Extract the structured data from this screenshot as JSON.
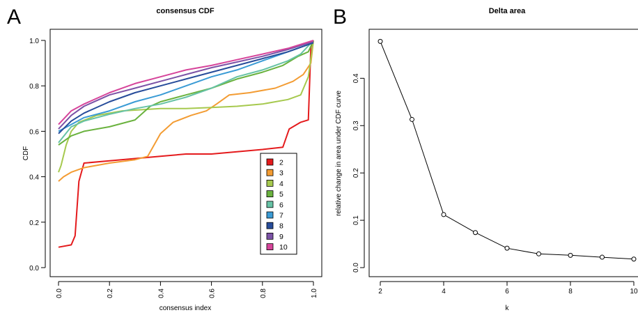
{
  "panels": {
    "a_letter": "A",
    "b_letter": "B"
  },
  "chart_data": [
    {
      "type": "line",
      "title": "consensus CDF",
      "xlabel": "consensus index",
      "ylabel": "CDF",
      "xlim": [
        0,
        1
      ],
      "ylim": [
        0,
        1
      ],
      "xticks": [
        "0.0",
        "0.2",
        "0.4",
        "0.6",
        "0.8",
        "1.0"
      ],
      "yticks": [
        "0.0",
        "0.2",
        "0.4",
        "0.6",
        "0.8",
        "1.0"
      ],
      "legend_position": "bottom-right",
      "series": [
        {
          "name": "2",
          "color": "#e41a1c",
          "points": [
            [
              0,
              0.09
            ],
            [
              0.05,
              0.1
            ],
            [
              0.065,
              0.14
            ],
            [
              0.08,
              0.38
            ],
            [
              0.1,
              0.46
            ],
            [
              0.2,
              0.47
            ],
            [
              0.3,
              0.48
            ],
            [
              0.4,
              0.49
            ],
            [
              0.5,
              0.5
            ],
            [
              0.6,
              0.5
            ],
            [
              0.7,
              0.51
            ],
            [
              0.8,
              0.52
            ],
            [
              0.88,
              0.53
            ],
            [
              0.905,
              0.61
            ],
            [
              0.95,
              0.64
            ],
            [
              0.98,
              0.65
            ],
            [
              0.99,
              0.97
            ],
            [
              1.0,
              1.0
            ]
          ]
        },
        {
          "name": "3",
          "color": "#f39c33",
          "points": [
            [
              0,
              0.38
            ],
            [
              0.02,
              0.4
            ],
            [
              0.05,
              0.42
            ],
            [
              0.1,
              0.44
            ],
            [
              0.2,
              0.46
            ],
            [
              0.3,
              0.475
            ],
            [
              0.35,
              0.49
            ],
            [
              0.4,
              0.59
            ],
            [
              0.45,
              0.64
            ],
            [
              0.52,
              0.67
            ],
            [
              0.58,
              0.69
            ],
            [
              0.62,
              0.72
            ],
            [
              0.67,
              0.76
            ],
            [
              0.75,
              0.77
            ],
            [
              0.85,
              0.79
            ],
            [
              0.92,
              0.82
            ],
            [
              0.96,
              0.85
            ],
            [
              0.99,
              0.9
            ],
            [
              1.0,
              1.0
            ]
          ]
        },
        {
          "name": "4",
          "color": "#a6c94e",
          "points": [
            [
              0,
              0.42
            ],
            [
              0.01,
              0.45
            ],
            [
              0.03,
              0.54
            ],
            [
              0.05,
              0.6
            ],
            [
              0.08,
              0.64
            ],
            [
              0.15,
              0.67
            ],
            [
              0.25,
              0.69
            ],
            [
              0.4,
              0.7
            ],
            [
              0.5,
              0.7
            ],
            [
              0.6,
              0.705
            ],
            [
              0.7,
              0.71
            ],
            [
              0.8,
              0.72
            ],
            [
              0.9,
              0.74
            ],
            [
              0.95,
              0.76
            ],
            [
              0.98,
              0.84
            ],
            [
              1.0,
              1.0
            ]
          ]
        },
        {
          "name": "5",
          "color": "#6ab23e",
          "points": [
            [
              0,
              0.54
            ],
            [
              0.05,
              0.58
            ],
            [
              0.1,
              0.6
            ],
            [
              0.2,
              0.62
            ],
            [
              0.3,
              0.65
            ],
            [
              0.36,
              0.71
            ],
            [
              0.4,
              0.73
            ],
            [
              0.5,
              0.76
            ],
            [
              0.6,
              0.79
            ],
            [
              0.7,
              0.83
            ],
            [
              0.8,
              0.86
            ],
            [
              0.88,
              0.89
            ],
            [
              0.94,
              0.93
            ],
            [
              0.98,
              0.95
            ],
            [
              1.0,
              1.0
            ]
          ]
        },
        {
          "name": "6",
          "color": "#66c2a5",
          "points": [
            [
              0,
              0.55
            ],
            [
              0.05,
              0.62
            ],
            [
              0.1,
              0.645
            ],
            [
              0.2,
              0.675
            ],
            [
              0.3,
              0.7
            ],
            [
              0.4,
              0.72
            ],
            [
              0.5,
              0.75
            ],
            [
              0.6,
              0.79
            ],
            [
              0.7,
              0.84
            ],
            [
              0.8,
              0.87
            ],
            [
              0.9,
              0.91
            ],
            [
              0.95,
              0.94
            ],
            [
              1.0,
              1.0
            ]
          ]
        },
        {
          "name": "7",
          "color": "#3a9bd5",
          "points": [
            [
              0,
              0.6
            ],
            [
              0.05,
              0.63
            ],
            [
              0.1,
              0.66
            ],
            [
              0.2,
              0.69
            ],
            [
              0.3,
              0.73
            ],
            [
              0.4,
              0.76
            ],
            [
              0.5,
              0.8
            ],
            [
              0.6,
              0.84
            ],
            [
              0.7,
              0.87
            ],
            [
              0.8,
              0.91
            ],
            [
              0.9,
              0.95
            ],
            [
              1.0,
              0.99
            ]
          ]
        },
        {
          "name": "8",
          "color": "#274c9a",
          "points": [
            [
              0,
              0.59
            ],
            [
              0.05,
              0.645
            ],
            [
              0.1,
              0.68
            ],
            [
              0.2,
              0.73
            ],
            [
              0.3,
              0.77
            ],
            [
              0.4,
              0.8
            ],
            [
              0.5,
              0.83
            ],
            [
              0.6,
              0.86
            ],
            [
              0.7,
              0.89
            ],
            [
              0.8,
              0.92
            ],
            [
              0.9,
              0.95
            ],
            [
              1.0,
              0.99
            ]
          ]
        },
        {
          "name": "9",
          "color": "#7b52a6",
          "points": [
            [
              0,
              0.61
            ],
            [
              0.05,
              0.67
            ],
            [
              0.1,
              0.71
            ],
            [
              0.2,
              0.76
            ],
            [
              0.3,
              0.79
            ],
            [
              0.4,
              0.82
            ],
            [
              0.5,
              0.85
            ],
            [
              0.6,
              0.88
            ],
            [
              0.7,
              0.905
            ],
            [
              0.8,
              0.93
            ],
            [
              0.9,
              0.96
            ],
            [
              1.0,
              0.995
            ]
          ]
        },
        {
          "name": "10",
          "color": "#d6449a",
          "points": [
            [
              0,
              0.63
            ],
            [
              0.05,
              0.69
            ],
            [
              0.1,
              0.72
            ],
            [
              0.2,
              0.77
            ],
            [
              0.3,
              0.81
            ],
            [
              0.4,
              0.84
            ],
            [
              0.5,
              0.87
            ],
            [
              0.6,
              0.89
            ],
            [
              0.7,
              0.915
            ],
            [
              0.8,
              0.94
            ],
            [
              0.9,
              0.965
            ],
            [
              1.0,
              1.0
            ]
          ]
        }
      ]
    },
    {
      "type": "line",
      "title": "Delta area",
      "xlabel": "k",
      "ylabel": "relative change in area under CDF curve",
      "xlim": [
        2,
        10
      ],
      "ylim": [
        0,
        0.48
      ],
      "xticks": [
        "2",
        "4",
        "6",
        "8",
        "10"
      ],
      "yticks": [
        "0.0",
        "0.1",
        "0.2",
        "0.3",
        "0.4"
      ],
      "x": [
        2,
        3,
        4,
        5,
        6,
        7,
        8,
        9,
        10
      ],
      "values": [
        0.478,
        0.313,
        0.112,
        0.074,
        0.041,
        0.029,
        0.026,
        0.022,
        0.018
      ]
    }
  ]
}
